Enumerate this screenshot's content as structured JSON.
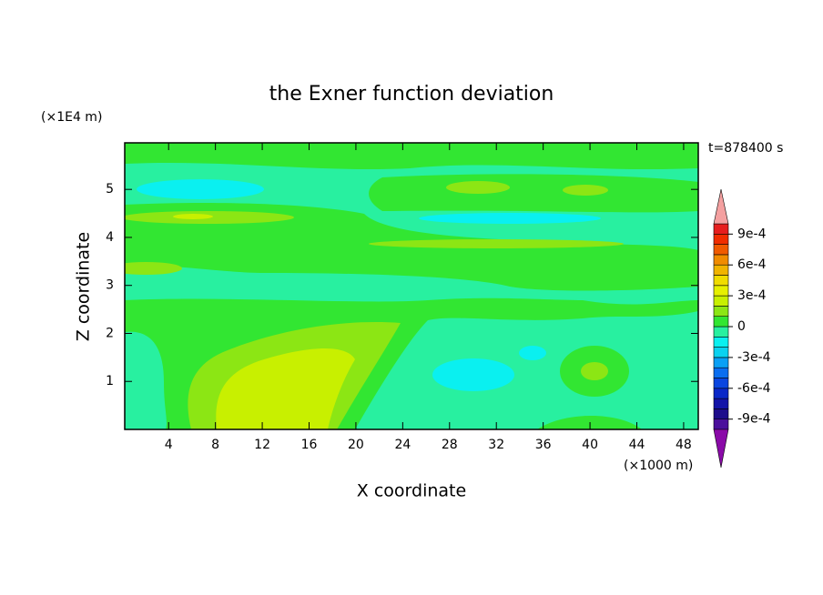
{
  "chart_data": {
    "type": "contour",
    "title": "the Exner function deviation",
    "xlabel": "X coordinate",
    "ylabel": "Z coordinate",
    "x_unit": "(×1000 m)",
    "y_unit": "(×1E4 m)",
    "time_label": "t=878400 s",
    "xlim": [
      0.25,
      49.25
    ],
    "xticks": [
      4,
      8,
      12,
      16,
      20,
      24,
      28,
      32,
      36,
      40,
      44,
      48
    ],
    "ylim": [
      0,
      5.97
    ],
    "yticks": [
      1,
      2,
      3,
      4,
      5
    ],
    "colorbar": {
      "levels": [
        -0.001,
        -0.0009,
        -0.0008,
        -0.0007,
        -0.0006,
        -0.0005,
        -0.0004,
        -0.0003,
        -0.0002,
        -0.0001,
        0,
        0.0001,
        0.0002,
        0.0003,
        0.0004,
        0.0005,
        0.0006,
        0.0007,
        0.0008,
        0.0009,
        0.001
      ],
      "colors": [
        "#4b0f9c",
        "#1e0d8c",
        "#1414a8",
        "#0a28c8",
        "#0a46e0",
        "#0a6ef0",
        "#0aa0f5",
        "#0ad2f0",
        "#0af0f0",
        "#28f0a0",
        "#32e632",
        "#8ce614",
        "#c8f000",
        "#e6f000",
        "#f0dc00",
        "#f0b400",
        "#f08c00",
        "#f05a00",
        "#f02d00",
        "#e61e1e"
      ],
      "under_color": "#8a0aa8",
      "over_color": "#f4a0a0",
      "ticks": [
        {
          "value": 0.0009,
          "label": "9e-4"
        },
        {
          "value": 0.0006,
          "label": "6e-4"
        },
        {
          "value": 0.0003,
          "label": "3e-4"
        },
        0,
        {
          "value": -0.0003,
          "label": "-3e-4"
        },
        {
          "value": -0.0006,
          "label": "-6e-4"
        },
        {
          "value": -0.0009,
          "label": "-9e-4"
        }
      ]
    }
  }
}
